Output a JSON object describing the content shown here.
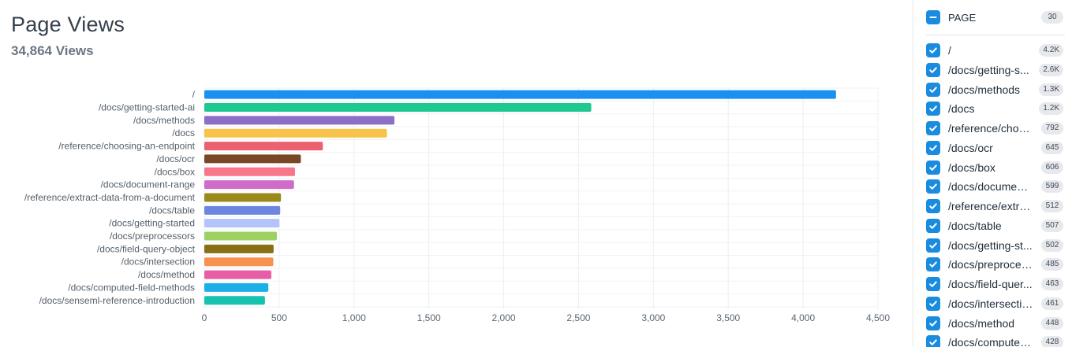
{
  "header": {
    "title": "Page Views",
    "subtitle": "34,864 Views"
  },
  "colors": {
    "accent": "#1a8cdf"
  },
  "chart_data": {
    "type": "bar",
    "orientation": "horizontal",
    "categories": [
      "/",
      "/docs/getting-started-ai",
      "/docs/methods",
      "/docs",
      "/reference/choosing-an-endpoint",
      "/docs/ocr",
      "/docs/box",
      "/docs/document-range",
      "/reference/extract-data-from-a-document",
      "/docs/table",
      "/docs/getting-started",
      "/docs/preprocessors",
      "/docs/field-query-object",
      "/docs/intersection",
      "/docs/method",
      "/docs/computed-field-methods",
      "/docs/senseml-reference-introduction"
    ],
    "values": [
      4220,
      2585,
      1270,
      1220,
      792,
      645,
      606,
      599,
      512,
      507,
      502,
      485,
      463,
      461,
      448,
      428,
      405
    ],
    "colors": [
      "#1a90f0",
      "#1fc88e",
      "#8c6ec8",
      "#f8c34a",
      "#ec6170",
      "#7a4726",
      "#f7768a",
      "#cf6cc9",
      "#9a8a1c",
      "#6e84e0",
      "#b3c4fb",
      "#9ed162",
      "#877014",
      "#f6914f",
      "#e85ea6",
      "#1ab0e6",
      "#16c3ae"
    ],
    "xlim": [
      0,
      4500
    ],
    "xticks": [
      0,
      500,
      1000,
      1500,
      2000,
      2500,
      3000,
      3500,
      4000,
      4500
    ],
    "xtick_labels": [
      "0",
      "500",
      "1,000",
      "1,500",
      "2,000",
      "2,500",
      "3,000",
      "3,500",
      "4,000",
      "4,500"
    ],
    "grid": true
  },
  "sidebar": {
    "header": {
      "label": "PAGE",
      "count": "30"
    },
    "items": [
      {
        "label": "/",
        "count": "4.2K"
      },
      {
        "label": "/docs/getting-s...",
        "count": "2.6K"
      },
      {
        "label": "/docs/methods",
        "count": "1.3K"
      },
      {
        "label": "/docs",
        "count": "1.2K"
      },
      {
        "label": "/reference/choo...",
        "count": "792"
      },
      {
        "label": "/docs/ocr",
        "count": "645"
      },
      {
        "label": "/docs/box",
        "count": "606"
      },
      {
        "label": "/docs/document...",
        "count": "599"
      },
      {
        "label": "/reference/extra...",
        "count": "512"
      },
      {
        "label": "/docs/table",
        "count": "507"
      },
      {
        "label": "/docs/getting-st...",
        "count": "502"
      },
      {
        "label": "/docs/preproces...",
        "count": "485"
      },
      {
        "label": "/docs/field-quer...",
        "count": "463"
      },
      {
        "label": "/docs/intersection",
        "count": "461"
      },
      {
        "label": "/docs/method",
        "count": "448"
      },
      {
        "label": "/docs/computed...",
        "count": "428"
      }
    ]
  }
}
